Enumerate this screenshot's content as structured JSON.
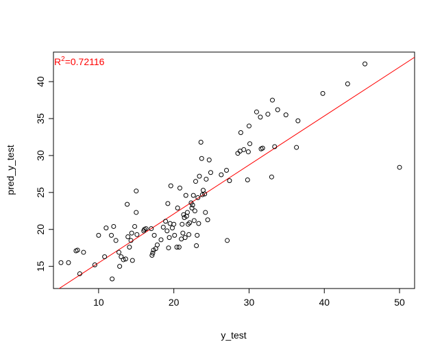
{
  "chart_data": {
    "type": "scatter",
    "title": "",
    "xlabel": "y_test",
    "ylabel": "pred_y_test",
    "xlim": [
      4,
      52
    ],
    "ylim": [
      12,
      44
    ],
    "xticks": [
      10,
      20,
      30,
      40,
      50
    ],
    "yticks": [
      15,
      20,
      25,
      30,
      35,
      40
    ],
    "grid": false,
    "annotation": {
      "base": "R",
      "sup": "2",
      "text": "=0.72116",
      "color": "#ff0000"
    },
    "fit_line": {
      "color": "#ff0000",
      "x": [
        4,
        52
      ],
      "y": [
        11.5,
        43.3
      ]
    },
    "points": [
      [
        5,
        15.5
      ],
      [
        6,
        15.5
      ],
      [
        7,
        17.1
      ],
      [
        7.2,
        17.2
      ],
      [
        7.5,
        14
      ],
      [
        8,
        16.9
      ],
      [
        9.5,
        15.2
      ],
      [
        10,
        19.2
      ],
      [
        10.8,
        16.3
      ],
      [
        11,
        20.2
      ],
      [
        11.7,
        19.2
      ],
      [
        11.8,
        13.3
      ],
      [
        12,
        20.4
      ],
      [
        12.3,
        18.5
      ],
      [
        12.7,
        16.9
      ],
      [
        12.8,
        15
      ],
      [
        13,
        16.3
      ],
      [
        13.3,
        15.9
      ],
      [
        13.6,
        16
      ],
      [
        13.8,
        23.4
      ],
      [
        13.9,
        19
      ],
      [
        14.1,
        17.6
      ],
      [
        14.3,
        18.5
      ],
      [
        14.4,
        19.5
      ],
      [
        14.5,
        15.8
      ],
      [
        14.8,
        20.4
      ],
      [
        15,
        25.2
      ],
      [
        15,
        22.3
      ],
      [
        15.1,
        19.3
      ],
      [
        16,
        19.8
      ],
      [
        16.1,
        20
      ],
      [
        16.3,
        20.1
      ],
      [
        17,
        20.1
      ],
      [
        17.1,
        16.5
      ],
      [
        17.2,
        16.8
      ],
      [
        17.3,
        17.2
      ],
      [
        17.4,
        19.2
      ],
      [
        17.6,
        17.4
      ],
      [
        17.8,
        17.9
      ],
      [
        18.3,
        18.6
      ],
      [
        18.6,
        20.3
      ],
      [
        18.9,
        21.1
      ],
      [
        19.1,
        19.8
      ],
      [
        19.2,
        23.5
      ],
      [
        19.3,
        17.5
      ],
      [
        19.4,
        18.9
      ],
      [
        19.5,
        20.8
      ],
      [
        19.6,
        25.9
      ],
      [
        19.8,
        20.2
      ],
      [
        20,
        20.7
      ],
      [
        20.1,
        19.2
      ],
      [
        20.4,
        17.6
      ],
      [
        20.5,
        22.9
      ],
      [
        20.7,
        17.6
      ],
      [
        20.8,
        25.6
      ],
      [
        21,
        18.7
      ],
      [
        21.1,
        20.7
      ],
      [
        21.2,
        19.5
      ],
      [
        21.3,
        22
      ],
      [
        21.4,
        21.6
      ],
      [
        21.5,
        18.9
      ],
      [
        21.6,
        24.6
      ],
      [
        21.7,
        21.8
      ],
      [
        21.8,
        22.3
      ],
      [
        21.9,
        20.7
      ],
      [
        22,
        19.3
      ],
      [
        22.1,
        20.9
      ],
      [
        22.3,
        23.6
      ],
      [
        22.4,
        22.9
      ],
      [
        22.5,
        23.3
      ],
      [
        22.6,
        24.6
      ],
      [
        22.7,
        21.2
      ],
      [
        22.8,
        22.5
      ],
      [
        22.9,
        26.5
      ],
      [
        23,
        17.8
      ],
      [
        23.1,
        19.2
      ],
      [
        23.2,
        24.3
      ],
      [
        23.3,
        20.8
      ],
      [
        23.4,
        27.2
      ],
      [
        23.6,
        31.8
      ],
      [
        23.7,
        29.6
      ],
      [
        23.8,
        24.7
      ],
      [
        23.9,
        25.3
      ],
      [
        24.1,
        24.8
      ],
      [
        24.2,
        22.3
      ],
      [
        24.3,
        26.8
      ],
      [
        24.5,
        21.3
      ],
      [
        24.7,
        29.4
      ],
      [
        24.9,
        27.7
      ],
      [
        26.3,
        27.4
      ],
      [
        27,
        28
      ],
      [
        27.1,
        18.5
      ],
      [
        27.4,
        26.6
      ],
      [
        28.5,
        30.3
      ],
      [
        28.8,
        30.6
      ],
      [
        28.9,
        33.1
      ],
      [
        29.3,
        30.8
      ],
      [
        29.8,
        26.7
      ],
      [
        29.9,
        30.5
      ],
      [
        30,
        34
      ],
      [
        30.1,
        31.6
      ],
      [
        31,
        35.9
      ],
      [
        31.5,
        35.2
      ],
      [
        31.6,
        30.9
      ],
      [
        31.8,
        31
      ],
      [
        32.5,
        35.6
      ],
      [
        33,
        27.1
      ],
      [
        33.1,
        37.5
      ],
      [
        33.4,
        31.2
      ],
      [
        33.8,
        36.2
      ],
      [
        34.9,
        35.5
      ],
      [
        36.3,
        31.1
      ],
      [
        36.5,
        34.7
      ],
      [
        39.8,
        38.4
      ],
      [
        43.1,
        39.7
      ],
      [
        45.4,
        42.4
      ],
      [
        50,
        28.4
      ]
    ]
  }
}
